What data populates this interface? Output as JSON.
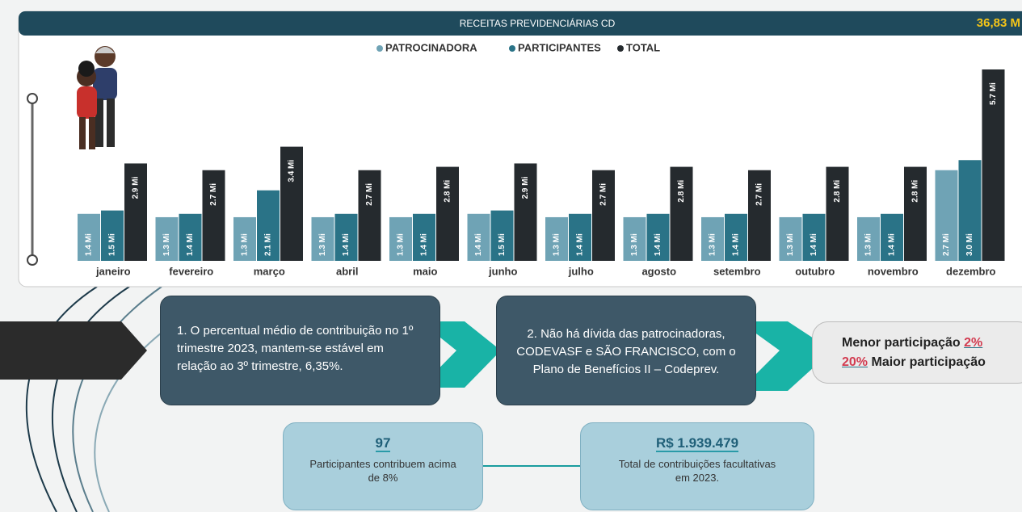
{
  "chart_data": {
    "type": "bar",
    "title": "RECEITAS PREVIDENCIÁRIAS CD",
    "annotation": "36,83 M",
    "categories": [
      "janeiro",
      "fevereiro",
      "março",
      "abril",
      "maio",
      "junho",
      "julho",
      "agosto",
      "setembro",
      "outubro",
      "novembro",
      "dezembro"
    ],
    "series": [
      {
        "name": "PATROCINADORA",
        "color": "#6fa3b5",
        "values": [
          1.4,
          1.3,
          1.3,
          1.3,
          1.3,
          1.4,
          1.3,
          1.3,
          1.3,
          1.3,
          1.3,
          2.7
        ],
        "value_labels": [
          "1.4 Mi",
          "1.3 Mi",
          "1.3 Mi",
          "1.3 Mi",
          "1.3 Mi",
          "1.4 Mi",
          "1.3 Mi",
          "1.3 Mi",
          "1.3 Mi",
          "1.3 Mi",
          "1.3 Mi",
          "2.7 Mi"
        ]
      },
      {
        "name": "PARTICIPANTES",
        "color": "#2a7387",
        "values": [
          1.5,
          1.4,
          2.1,
          1.4,
          1.4,
          1.5,
          1.4,
          1.4,
          1.4,
          1.4,
          1.4,
          3.0
        ],
        "value_labels": [
          "1.5 Mi",
          "1.4 Mi",
          "2.1 Mi",
          "1.4 Mi",
          "1.4 Mi",
          "1.5 Mi",
          "1.4 Mi",
          "1.4 Mi",
          "1.4 Mi",
          "1.4 Mi",
          "1.4 Mi",
          "3.0 Mi"
        ]
      },
      {
        "name": "TOTAL",
        "color": "#252a2e",
        "values": [
          2.9,
          2.7,
          3.4,
          2.7,
          2.8,
          2.9,
          2.7,
          2.8,
          2.7,
          2.8,
          2.8,
          5.7
        ],
        "value_labels": [
          "2.9 Mi",
          "2.7 Mi",
          "3.4 Mi",
          "2.7 Mi",
          "2.8 Mi",
          "2.9 Mi",
          "2.7 Mi",
          "2.8 Mi",
          "2.7 Mi",
          "2.8 Mi",
          "2.8 Mi",
          "5.7 Mi"
        ]
      }
    ],
    "legend": "top",
    "grid": false
  },
  "notes": [
    "1. O percentual médio de contribuição no 1º trimestre 2023, mantem-se estável em relação ao 3º trimestre, 6,35%.",
    "2. Não há dívida das patrocinadoras, CODEVASF e SÃO FRANCISCO, com o Plano de Benefícios II – Codeprev."
  ],
  "participation": {
    "low_text": "Menor participação",
    "low_value": "2%",
    "high_value": "20%",
    "high_text": "Maior participação"
  },
  "stats": [
    {
      "value": "97",
      "label": "Participantes contribuem acima de 8%"
    },
    {
      "value": "R$ 1.939.479",
      "label": "Total de contribuições facultativas em 2023."
    }
  ]
}
